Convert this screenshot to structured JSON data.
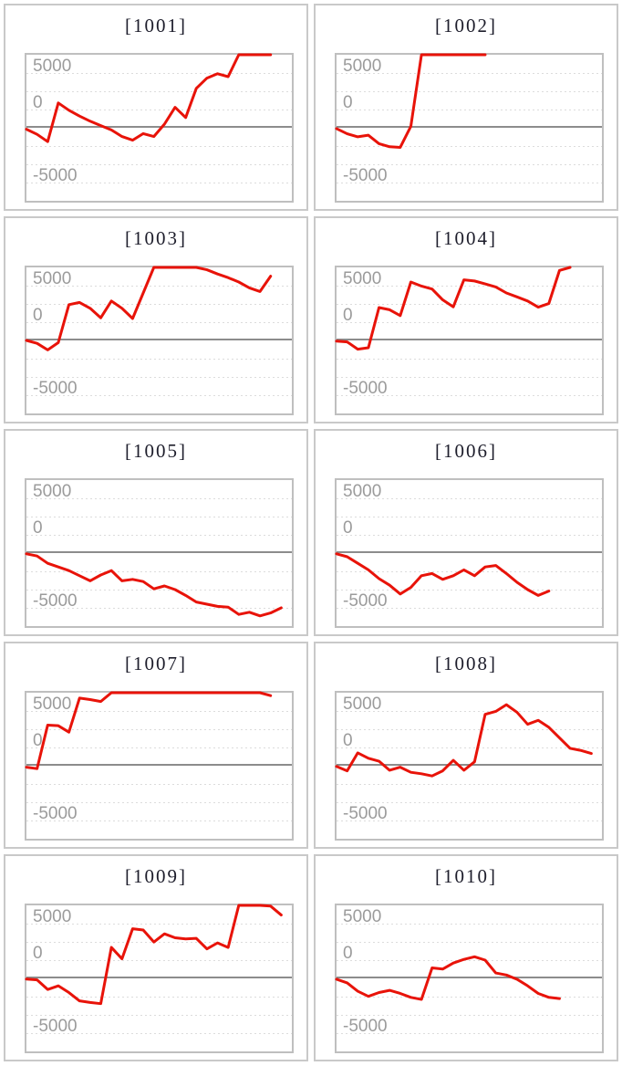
{
  "chart_data": {
    "type": "line",
    "layout": "small-multiples-grid-2cols-5rows",
    "ylim": [
      -5000,
      5000
    ],
    "ytick_labels": [
      "5000",
      "0",
      "-5000"
    ],
    "ytick_values": [
      5000,
      0,
      -5000
    ],
    "gridline_interval": 1250,
    "grid": "dotted-horizontal",
    "zero_line": true,
    "clip_at_ylim": true,
    "x_full_width_points": 26,
    "series_color": "#e81309",
    "charts": [
      {
        "title": "[1001]",
        "values": [
          -100,
          -450,
          -950,
          1700,
          1200,
          800,
          450,
          150,
          -150,
          -600,
          -850,
          -400,
          -600,
          250,
          1400,
          700,
          2700,
          3400,
          3700,
          3500,
          5300,
          5400,
          5400,
          5400
        ]
      },
      {
        "title": "[1002]",
        "values": [
          -60,
          -410,
          -620,
          -510,
          -1090,
          -1300,
          -1340,
          100,
          5300,
          5400,
          5400,
          5400,
          5400,
          5400,
          5300
        ]
      },
      {
        "title": "[1003]",
        "values": [
          0,
          -200,
          -650,
          -150,
          2450,
          2600,
          2200,
          1550,
          2700,
          2200,
          1500,
          3250,
          5200,
          5400,
          5400,
          5300,
          5100,
          4840,
          4550,
          4300,
          4000,
          3600,
          3350,
          4400
        ]
      },
      {
        "title": "[1004]",
        "values": [
          -50,
          -100,
          -600,
          -500,
          2250,
          2100,
          1700,
          4000,
          3720,
          3520,
          2780,
          2300,
          4150,
          4070,
          3870,
          3660,
          3250,
          2980,
          2700,
          2280,
          2530,
          4790,
          5050
        ]
      },
      {
        "title": "[1005]",
        "values": [
          -50,
          -200,
          -700,
          -950,
          -1200,
          -1550,
          -1900,
          -1500,
          -1200,
          -1900,
          -1800,
          -1950,
          -2450,
          -2250,
          -2500,
          -2900,
          -3350,
          -3500,
          -3650,
          -3700,
          -4200,
          -4050,
          -4300,
          -4100,
          -3750
        ]
      },
      {
        "title": "[1006]",
        "values": [
          -50,
          -250,
          -700,
          -1150,
          -1750,
          -2200,
          -2800,
          -2350,
          -1550,
          -1400,
          -1800,
          -1550,
          -1150,
          -1550,
          -950,
          -850,
          -1400,
          -2000,
          -2500,
          -2900,
          -2600
        ]
      },
      {
        "title": "[1007]",
        "values": [
          -100,
          -200,
          2780,
          2740,
          2300,
          4630,
          4530,
          4400,
          5100,
          5100,
          5100,
          5100,
          5100,
          5100,
          5100,
          5100,
          5100,
          5100,
          5100,
          5100,
          5100,
          5100,
          5100,
          4800
        ]
      },
      {
        "title": "[1008]",
        "values": [
          -50,
          -350,
          880,
          510,
          310,
          -310,
          -100,
          -450,
          -550,
          -700,
          -350,
          370,
          -310,
          270,
          3520,
          3720,
          4180,
          3660,
          2840,
          3110,
          2630,
          1910,
          1190,
          1050,
          840
        ]
      },
      {
        "title": "[1009]",
        "values": [
          -50,
          -100,
          -760,
          -510,
          -970,
          -1540,
          -1650,
          -1730,
          2120,
          1340,
          3400,
          3310,
          2490,
          3050,
          2780,
          2700,
          2740,
          2020,
          2430,
          2120,
          5150,
          5250,
          5250,
          4950,
          4340
        ]
      },
      {
        "title": "[1010]",
        "values": [
          -60,
          -310,
          -880,
          -1230,
          -970,
          -820,
          -1030,
          -1300,
          -1440,
          720,
          640,
          1050,
          1300,
          1480,
          1250,
          370,
          230,
          -60,
          -510,
          -1030,
          -1300,
          -1380
        ]
      }
    ]
  },
  "colors": {
    "series_line": "#e81309",
    "zero_line": "#8c8c8c",
    "dotted_grid": "#dcdcdc",
    "plot_border": "#bfbfbf",
    "card_border": "#c9c9c9",
    "tick_label": "#9b9b9b",
    "title_text": "#1d1d2b",
    "background": "#ffffff"
  }
}
